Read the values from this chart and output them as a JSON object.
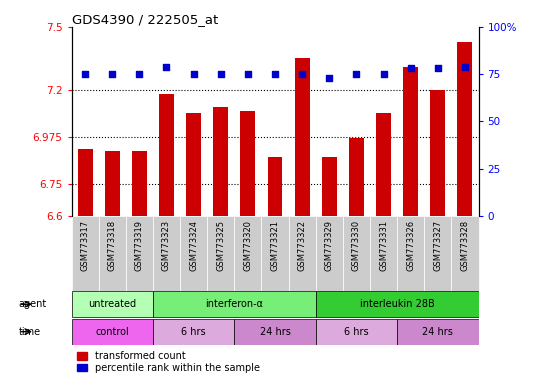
{
  "title": "GDS4390 / 222505_at",
  "samples": [
    "GSM773317",
    "GSM773318",
    "GSM773319",
    "GSM773323",
    "GSM773324",
    "GSM773325",
    "GSM773320",
    "GSM773321",
    "GSM773322",
    "GSM773329",
    "GSM773330",
    "GSM773331",
    "GSM773326",
    "GSM773327",
    "GSM773328"
  ],
  "red_values": [
    6.92,
    6.91,
    6.91,
    7.18,
    7.09,
    7.12,
    7.1,
    6.88,
    7.35,
    6.88,
    6.97,
    7.09,
    7.31,
    7.2,
    7.43
  ],
  "blue_values": [
    75,
    75,
    75,
    79,
    75,
    75,
    75,
    75,
    75,
    73,
    75,
    75,
    78,
    78,
    79
  ],
  "ylim_left": [
    6.6,
    7.5
  ],
  "ylim_right": [
    0,
    100
  ],
  "yticks_left": [
    6.6,
    6.75,
    6.975,
    7.2,
    7.5
  ],
  "yticks_right": [
    0,
    25,
    50,
    75,
    100
  ],
  "ytick_labels_left": [
    "6.6",
    "6.75",
    "6.975",
    "7.2",
    "7.5"
  ],
  "ytick_labels_right": [
    "0",
    "25",
    "50",
    "75",
    "100%"
  ],
  "hlines": [
    7.2,
    6.975,
    6.75
  ],
  "agent_groups": [
    {
      "label": "untreated",
      "start": 0,
      "end": 3,
      "color": "#b3ffb3"
    },
    {
      "label": "interferon-α",
      "start": 3,
      "end": 9,
      "color": "#77ee77"
    },
    {
      "label": "interleukin 28B",
      "start": 9,
      "end": 15,
      "color": "#33cc33"
    }
  ],
  "time_groups": [
    {
      "label": "control",
      "start": 0,
      "end": 3,
      "color": "#ee66ee"
    },
    {
      "label": "6 hrs",
      "start": 3,
      "end": 6,
      "color": "#ddaadd"
    },
    {
      "label": "24 hrs",
      "start": 6,
      "end": 9,
      "color": "#cc88cc"
    },
    {
      "label": "6 hrs",
      "start": 9,
      "end": 12,
      "color": "#ddaadd"
    },
    {
      "label": "24 hrs",
      "start": 12,
      "end": 15,
      "color": "#cc88cc"
    }
  ],
  "bar_color": "#cc0000",
  "dot_color": "#0000cc",
  "sample_bg_color": "#cccccc",
  "legend_items": [
    {
      "color": "#cc0000",
      "label": "transformed count"
    },
    {
      "color": "#0000cc",
      "label": "percentile rank within the sample"
    }
  ]
}
